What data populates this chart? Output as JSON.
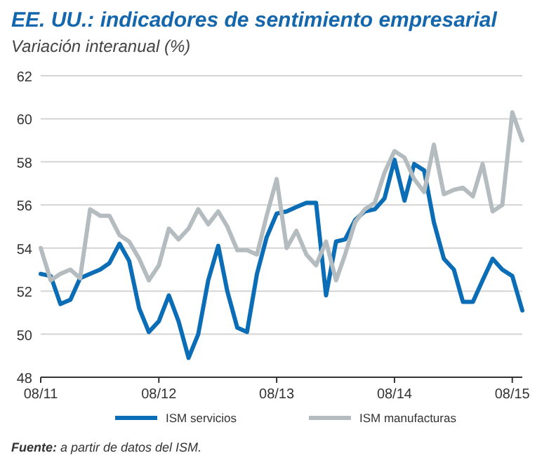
{
  "chart_data": {
    "type": "line",
    "title": "EE. UU.: indicadores de sentimiento empresarial",
    "subtitle": "Variación interanual (%)",
    "x": [
      "2011-08",
      "2011-09",
      "2011-10",
      "2011-11",
      "2011-12",
      "2012-01",
      "2012-02",
      "2012-03",
      "2012-04",
      "2012-05",
      "2012-06",
      "2012-07",
      "2012-08",
      "2012-09",
      "2012-10",
      "2012-11",
      "2012-12",
      "2013-01",
      "2013-02",
      "2013-03",
      "2013-04",
      "2013-05",
      "2013-06",
      "2013-07",
      "2013-08",
      "2013-09",
      "2013-10",
      "2013-11",
      "2013-12",
      "2014-01",
      "2014-02",
      "2014-03",
      "2014-04",
      "2014-05",
      "2014-06",
      "2014-07",
      "2014-08",
      "2014-09",
      "2014-10",
      "2014-11",
      "2014-12",
      "2015-01",
      "2015-02",
      "2015-03",
      "2015-04",
      "2015-05",
      "2015-06",
      "2015-07",
      "2015-08",
      "2015-09"
    ],
    "series": [
      {
        "name": "ISM servicios",
        "color": "#0a6db5",
        "values": [
          52.8,
          52.7,
          51.4,
          51.6,
          52.6,
          52.8,
          53.0,
          53.3,
          54.2,
          53.4,
          51.2,
          50.1,
          50.6,
          51.8,
          50.6,
          48.9,
          50.0,
          52.5,
          54.1,
          52.0,
          50.3,
          50.1,
          52.8,
          54.5,
          55.6,
          55.7,
          55.9,
          56.1,
          56.1,
          51.8,
          54.3,
          54.4,
          55.3,
          55.7,
          55.8,
          56.3,
          58.1,
          56.2,
          57.9,
          57.6,
          55.2,
          53.5,
          53.0,
          51.5,
          51.5,
          52.5,
          53.5,
          53.0,
          52.7,
          51.1
        ]
      },
      {
        "name": "ISM manufacturas",
        "color": "#b4bcc0",
        "values": [
          54.0,
          52.5,
          52.8,
          53.0,
          52.6,
          55.8,
          55.5,
          55.5,
          54.6,
          54.3,
          53.5,
          52.5,
          53.2,
          54.9,
          54.4,
          54.9,
          55.8,
          55.1,
          55.7,
          55.0,
          53.9,
          53.9,
          53.7,
          55.5,
          57.2,
          54.0,
          54.8,
          53.7,
          53.2,
          54.3,
          52.5,
          53.7,
          55.2,
          55.8,
          56.1,
          57.5,
          58.5,
          58.2,
          57.2,
          56.6,
          58.8,
          56.5,
          56.7,
          56.8,
          56.4,
          57.9,
          55.7,
          56.0,
          60.3,
          59.0
        ]
      }
    ],
    "xlim": [
      "2011-08",
      "2015-09"
    ],
    "xticks": [
      {
        "value": "2011-08",
        "label": "08/11"
      },
      {
        "value": "2012-08",
        "label": "08/12"
      },
      {
        "value": "2013-08",
        "label": "08/13"
      },
      {
        "value": "2014-08",
        "label": "08/14"
      },
      {
        "value": "2015-08",
        "label": "08/15"
      }
    ],
    "ylim": [
      48,
      62
    ],
    "yticks": [
      48,
      50,
      52,
      54,
      56,
      58,
      60,
      62
    ],
    "grid": "y",
    "legend": "bottom",
    "marker": "none",
    "line_style": "solid",
    "annotations": [
      "Fuente: a partir de datos del ISM."
    ]
  }
}
